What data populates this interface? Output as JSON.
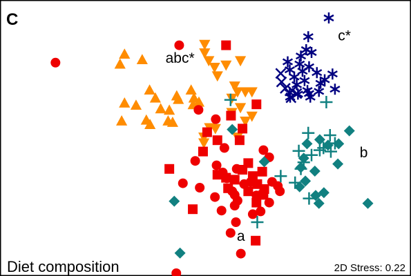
{
  "panel_letter": "C",
  "chart_data": {
    "type": "scatter",
    "title": "Diet composition",
    "stress_label": "2D Stress: 0.22",
    "axes": "none",
    "grid": false,
    "xlim": [
      0,
      100
    ],
    "ylim": [
      0,
      100
    ],
    "colors": {
      "orange": "#FF8C00",
      "red": "#EE0000",
      "teal": "#118080",
      "navy": "#000080"
    },
    "series": [
      {
        "marker": "triangle-up",
        "color": "orange",
        "points": [
          [
            30.3,
            80.2
          ],
          [
            29.2,
            76.6
          ],
          [
            34.6,
            78.2
          ],
          [
            36.4,
            67.2
          ],
          [
            37.8,
            64.3
          ],
          [
            33.1,
            61.7
          ],
          [
            29.6,
            56.0
          ],
          [
            35.6,
            56.3
          ],
          [
            42.0,
            55.5
          ],
          [
            43.4,
            63.8
          ],
          [
            46.5,
            67.2
          ],
          [
            47.2,
            64.3
          ],
          [
            48.4,
            62.8
          ],
          [
            39.1,
            60.4
          ],
          [
            41.2,
            59.9
          ],
          [
            47.0,
            61.9
          ],
          [
            30.3,
            62.5
          ],
          [
            36.5,
            54.7
          ],
          [
            40.9,
            56.0
          ],
          [
            43.0,
            65.1
          ]
        ]
      },
      {
        "marker": "triangle-down",
        "color": "orange",
        "points": [
          [
            49.8,
            84.1
          ],
          [
            49.8,
            81.0
          ],
          [
            50.8,
            78.2
          ],
          [
            52.2,
            75.8
          ],
          [
            52.9,
            72.7
          ],
          [
            55.0,
            76.6
          ],
          [
            58.5,
            78.2
          ],
          [
            57.1,
            69.0
          ],
          [
            57.8,
            66.9
          ],
          [
            56.4,
            64.6
          ],
          [
            59.7,
            66.9
          ],
          [
            61.3,
            66.9
          ],
          [
            58.5,
            61.2
          ],
          [
            56.4,
            59.4
          ],
          [
            61.3,
            58.1
          ],
          [
            59.7,
            56.3
          ],
          [
            57.8,
            50.5
          ],
          [
            49.6,
            50.5
          ],
          [
            49.6,
            48.4
          ],
          [
            52.4,
            53.6
          ],
          [
            51.0,
            53.9
          ]
        ]
      },
      {
        "marker": "circle",
        "color": "red",
        "points": [
          [
            13.5,
            77.3
          ],
          [
            43.6,
            83.6
          ],
          [
            48.3,
            60.2
          ],
          [
            52.5,
            56.8
          ],
          [
            54.6,
            46.4
          ],
          [
            47.5,
            41.7
          ],
          [
            52.7,
            40.1
          ],
          [
            57.6,
            38.8
          ],
          [
            54.2,
            37.5
          ],
          [
            55.2,
            35.4
          ],
          [
            56.5,
            30.7
          ],
          [
            57.1,
            29.4
          ],
          [
            57.8,
            27.3
          ],
          [
            57.1,
            25.5
          ],
          [
            59.4,
            33.3
          ],
          [
            61.0,
            34.1
          ],
          [
            62.4,
            29.2
          ],
          [
            63.4,
            23.4
          ],
          [
            64.1,
            45.6
          ],
          [
            65.5,
            43.0
          ],
          [
            66.2,
            34.1
          ],
          [
            61.5,
            22.4
          ],
          [
            67.6,
            32.6
          ],
          [
            65.5,
            26.6
          ],
          [
            68.1,
            30.7
          ],
          [
            53.9,
            23.7
          ],
          [
            57.4,
            19.5
          ],
          [
            56.1,
            15.6
          ],
          [
            58.6,
            8.1
          ],
          [
            42.9,
            1.0
          ],
          [
            48.6,
            32.0
          ],
          [
            44.5,
            33.6
          ],
          [
            52.3,
            28.6
          ]
        ]
      },
      {
        "marker": "square",
        "color": "red",
        "points": [
          [
            55.0,
            83.6
          ],
          [
            62.4,
            62.2
          ],
          [
            56.2,
            58.1
          ],
          [
            59.0,
            53.4
          ],
          [
            50.4,
            52.1
          ],
          [
            49.4,
            45.1
          ],
          [
            41.2,
            38.8
          ],
          [
            52.9,
            36.7
          ],
          [
            55.0,
            35.6
          ],
          [
            57.1,
            34.9
          ],
          [
            60.4,
            40.9
          ],
          [
            59.0,
            38.5
          ],
          [
            61.5,
            36.2
          ],
          [
            63.8,
            37.8
          ],
          [
            62.6,
            33.3
          ],
          [
            64.3,
            31.5
          ],
          [
            64.1,
            29.4
          ],
          [
            60.4,
            30.7
          ],
          [
            55.5,
            31.8
          ],
          [
            62.4,
            26.6
          ],
          [
            46.9,
            24.2
          ],
          [
            62.2,
            12.8
          ],
          [
            58.3,
            49.2
          ],
          [
            52.9,
            49.2
          ]
        ]
      },
      {
        "marker": "plus",
        "color": "teal",
        "points": [
          [
            56.1,
            63.8
          ],
          [
            79.4,
            63.0
          ],
          [
            75.0,
            51.8
          ],
          [
            80.3,
            51.0
          ],
          [
            81.5,
            48.1
          ],
          [
            77.8,
            45.6
          ],
          [
            75.8,
            43.8
          ],
          [
            72.7,
            45.3
          ],
          [
            73.9,
            41.2
          ],
          [
            73.2,
            38.8
          ],
          [
            71.8,
            33.8
          ],
          [
            68.3,
            36.2
          ],
          [
            75.2,
            28.1
          ],
          [
            78.7,
            46.4
          ],
          [
            80.5,
            45.1
          ],
          [
            62.6,
            19.5
          ]
        ]
      },
      {
        "marker": "diamond",
        "color": "teal",
        "points": [
          [
            85.0,
            52.6
          ],
          [
            74.7,
            47.9
          ],
          [
            77.8,
            49.4
          ],
          [
            79.8,
            47.4
          ],
          [
            73.9,
            42.7
          ],
          [
            73.2,
            39.3
          ],
          [
            76.6,
            38.0
          ],
          [
            82.2,
            40.6
          ],
          [
            82.4,
            47.9
          ],
          [
            74.3,
            34.4
          ],
          [
            72.9,
            32.3
          ],
          [
            78.8,
            30.2
          ],
          [
            76.8,
            29.2
          ],
          [
            77.6,
            26.3
          ],
          [
            89.5,
            26.3
          ],
          [
            42.4,
            27.1
          ],
          [
            56.5,
            53.1
          ],
          [
            64.3,
            41.4
          ],
          [
            43.8,
            8.3
          ]
        ]
      },
      {
        "marker": "asterisk",
        "color": "navy",
        "points": [
          [
            80.0,
            93.5
          ],
          [
            75.0,
            86.7
          ],
          [
            74.5,
            82.0
          ],
          [
            75.8,
            81.0
          ],
          [
            73.2,
            79.7
          ],
          [
            70.0,
            77.6
          ],
          [
            72.9,
            76.8
          ],
          [
            75.2,
            75.8
          ],
          [
            77.1,
            73.7
          ],
          [
            80.9,
            73.2
          ],
          [
            79.0,
            71.1
          ],
          [
            78.0,
            69.8
          ],
          [
            81.5,
            67.7
          ],
          [
            77.6,
            66.9
          ],
          [
            75.2,
            66.1
          ],
          [
            70.5,
            74.7
          ],
          [
            71.6,
            72.1
          ],
          [
            72.2,
            69.3
          ],
          [
            74.1,
            70.8
          ],
          [
            75.5,
            64.8
          ],
          [
            72.5,
            65.9
          ],
          [
            70.6,
            64.8
          ],
          [
            70.5,
            66.4
          ],
          [
            74.8,
            67.2
          ],
          [
            73.6,
            74.2
          ]
        ]
      },
      {
        "marker": "x",
        "color": "navy",
        "points": [
          [
            68.3,
            73.4
          ],
          [
            68.5,
            70.3
          ],
          [
            69.4,
            68.0
          ],
          [
            71.1,
            67.2
          ],
          [
            72.2,
            66.1
          ],
          [
            70.8,
            64.6
          ]
        ]
      }
    ],
    "annotations": [
      {
        "text": "abc*",
        "x": 43.8,
        "y": 77.3
      },
      {
        "text": "c*",
        "x": 83.8,
        "y": 85.4
      },
      {
        "text": "b",
        "x": 88.5,
        "y": 43.0
      },
      {
        "text": "a",
        "x": 58.6,
        "y": 12.8
      }
    ]
  }
}
